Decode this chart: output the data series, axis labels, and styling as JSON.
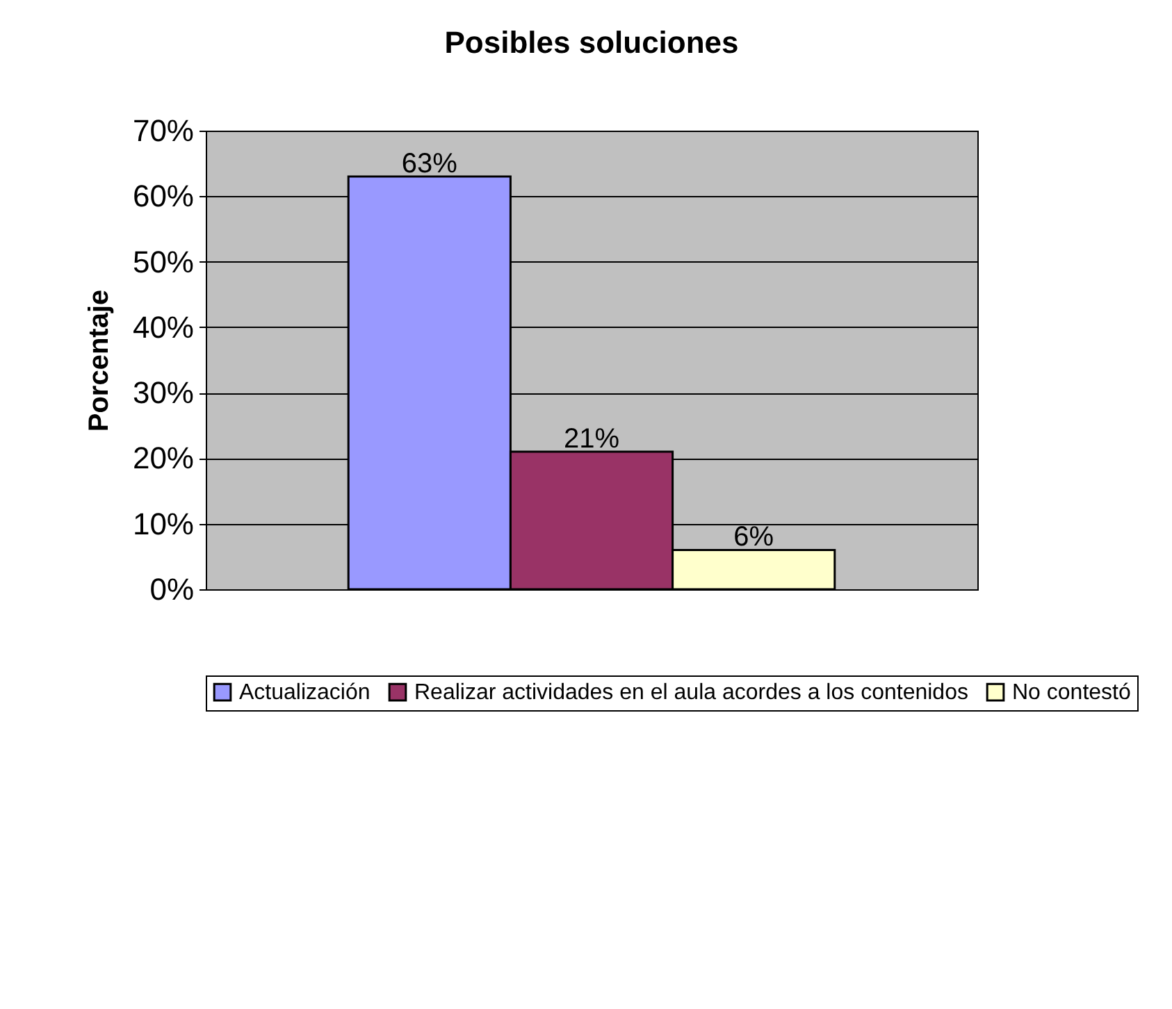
{
  "chart_data": {
    "type": "bar",
    "title": "Posibles soluciones",
    "ylabel": "Porcentaje",
    "categories": [
      null
    ],
    "series": [
      {
        "name": "Actualización",
        "color": "#9999ff",
        "values": [
          63
        ],
        "value_labels": [
          "63%"
        ]
      },
      {
        "name": "Realizar actividades en el aula acordes a los contenidos",
        "color": "#993366",
        "values": [
          21
        ],
        "value_labels": [
          "21%"
        ]
      },
      {
        "name": "No contestó",
        "color": "#ffffcc",
        "values": [
          6
        ],
        "value_labels": [
          "6%"
        ]
      }
    ],
    "ylim": [
      0,
      70
    ],
    "yticks": [
      {
        "value": 0,
        "label": "0%"
      },
      {
        "value": 10,
        "label": "10%"
      },
      {
        "value": 20,
        "label": "20%"
      },
      {
        "value": 30,
        "label": "30%"
      },
      {
        "value": 40,
        "label": "40%"
      },
      {
        "value": 50,
        "label": "50%"
      },
      {
        "value": 60,
        "label": "60%"
      },
      {
        "value": 70,
        "label": "70%"
      }
    ],
    "grid": "y",
    "legend": "bottom"
  }
}
